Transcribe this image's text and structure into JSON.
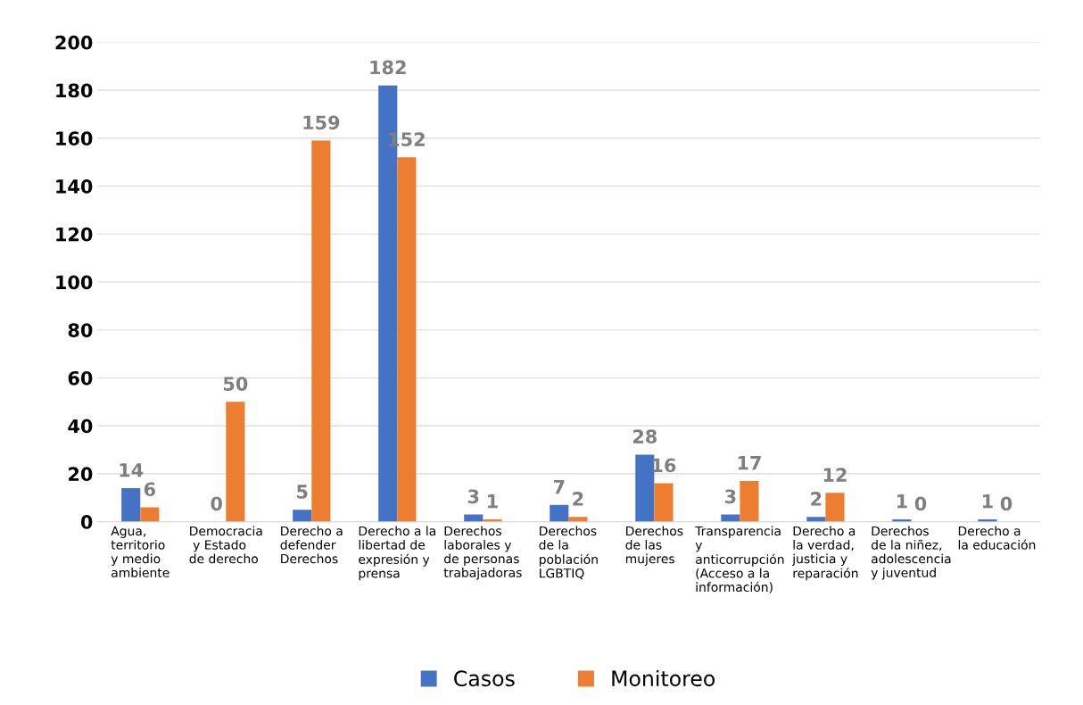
{
  "chart_data": {
    "type": "bar",
    "categories": [
      "Agua,\nterritorio\ny medio\nambiente",
      "Democracia\n y Estado\nde derecho",
      "Derecho a\ndefender\nDerechos",
      "Derecho a la\nlibertad de\nexpresión y\nprensa",
      "Derechos\nlaborales y\nde personas\ntrabajadoras",
      "Derechos\nde la\npoblación\nLGBTIQ",
      "Derechos\nde las\nmujeres",
      "Transparencia\ny\nanticorrupción\n(Acceso a la\ninformación)",
      "Derecho a\nla verdad,\njusticia y\nreparación",
      "Derechos\nde la niñez,\nadolescencia\ny juventud",
      "Derecho a\nla educación"
    ],
    "series": [
      {
        "name": "Casos",
        "color": "#4472c4",
        "values": [
          14,
          0,
          5,
          182,
          3,
          7,
          28,
          3,
          2,
          1,
          1
        ]
      },
      {
        "name": "Monitoreo",
        "color": "#ed7d31",
        "values": [
          6,
          50,
          159,
          152,
          1,
          2,
          16,
          17,
          12,
          0,
          0
        ]
      }
    ],
    "ylim": [
      0,
      200
    ],
    "yticks": [
      0,
      20,
      40,
      60,
      80,
      100,
      120,
      140,
      160,
      180,
      200
    ],
    "grid": "y",
    "legend": "bottom",
    "data_labels": true
  }
}
